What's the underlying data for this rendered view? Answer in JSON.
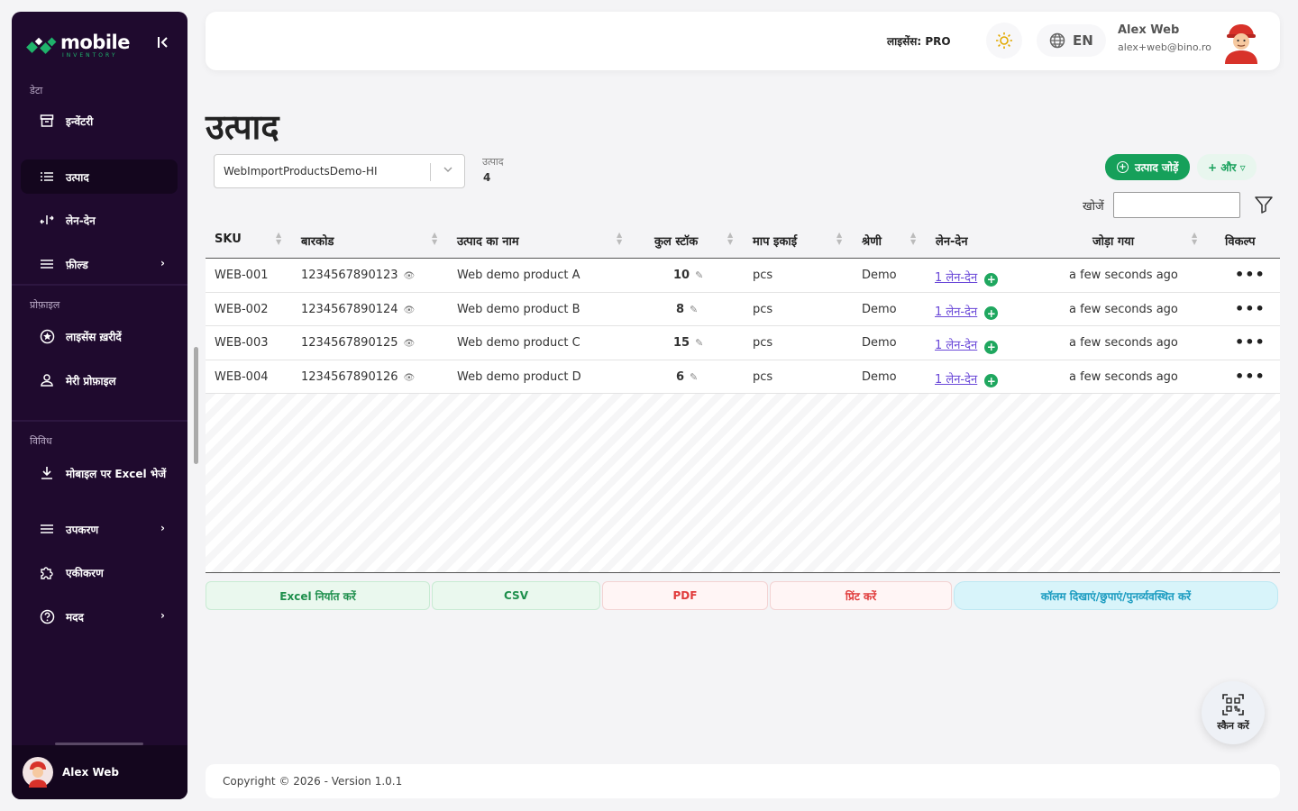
{
  "brand": {
    "name": "mobile",
    "tagline": "INVENTORY"
  },
  "sidebar": {
    "sections": [
      {
        "label": "डेटा"
      },
      {
        "label": "प्रोफ़ाइल"
      },
      {
        "label": "विविध"
      }
    ],
    "items": [
      {
        "label": "इन्वेंटरी",
        "icon": "archive-icon"
      },
      {
        "label": "उत्पाद",
        "icon": "list-icon",
        "active": true
      },
      {
        "label": "लेन-देन",
        "icon": "transfer-icon"
      },
      {
        "label": "फ़ील्ड",
        "icon": "menu-icon",
        "chevron": true
      },
      {
        "label": "लाइसेंस ख़रीदें",
        "icon": "badge-icon"
      },
      {
        "label": "मेरी प्रोफ़ाइल",
        "icon": "user-icon"
      },
      {
        "label": "मोबाइल पर Excel भेजें",
        "icon": "download-icon"
      },
      {
        "label": "उपकरण",
        "icon": "menu-icon",
        "chevron": true
      },
      {
        "label": "एकीकरण",
        "icon": "puzzle-icon"
      },
      {
        "label": "मदद",
        "icon": "help-icon",
        "chevron": true
      }
    ],
    "footer_user": "Alex Web"
  },
  "header": {
    "license": "लाइसेंस: PRO",
    "language": "EN",
    "user_name": "Alex Web",
    "user_email": "alex+web@bino.ro"
  },
  "main": {
    "title": "उत्पाद",
    "inventory_select": "WebImportProductsDemo-HI",
    "count_label": "उत्पाद",
    "count_value": "4",
    "add_button": "उत्पाद जोड़ें",
    "more_button": "+ और ▿",
    "search_label": "खोजें",
    "search_value": ""
  },
  "table": {
    "columns": [
      "SKU",
      "बारकोड",
      "उत्पाद का नाम",
      "कुल स्टॉक",
      "माप इकाई",
      "श्रेणी",
      "लेन-देन",
      "जोड़ा गया",
      "विकल्प"
    ],
    "rows": [
      {
        "sku": "WEB-001",
        "barcode": "1234567890123",
        "name": "Web demo product A",
        "stock": "10",
        "unit": "pcs",
        "category": "Demo",
        "txn": "1 लेन-देन",
        "added": "a few seconds ago"
      },
      {
        "sku": "WEB-002",
        "barcode": "1234567890124",
        "name": "Web demo product B",
        "stock": "8",
        "unit": "pcs",
        "category": "Demo",
        "txn": "1 लेन-देन",
        "added": "a few seconds ago"
      },
      {
        "sku": "WEB-003",
        "barcode": "1234567890125",
        "name": "Web demo product C",
        "stock": "15",
        "unit": "pcs",
        "category": "Demo",
        "txn": "1 लेन-देन",
        "added": "a few seconds ago"
      },
      {
        "sku": "WEB-004",
        "barcode": "1234567890126",
        "name": "Web demo product D",
        "stock": "6",
        "unit": "pcs",
        "category": "Demo",
        "txn": "1 लेन-देन",
        "added": "a few seconds ago"
      }
    ]
  },
  "exports": {
    "excel": "Excel निर्यात करें",
    "csv": "CSV",
    "pdf": "PDF",
    "print": "प्रिंट करें",
    "columns": "कॉलम दिखाएं/छुपाएं/पुनर्व्यवस्थित करें"
  },
  "scan": {
    "label": "स्कैन करें"
  },
  "footer": {
    "copyright": "Copyright © 2026 - Version 1.0.1"
  },
  "colors": {
    "sidebar": "#1f0a2e",
    "accent": "#16a05a",
    "link": "#6a48d8"
  }
}
